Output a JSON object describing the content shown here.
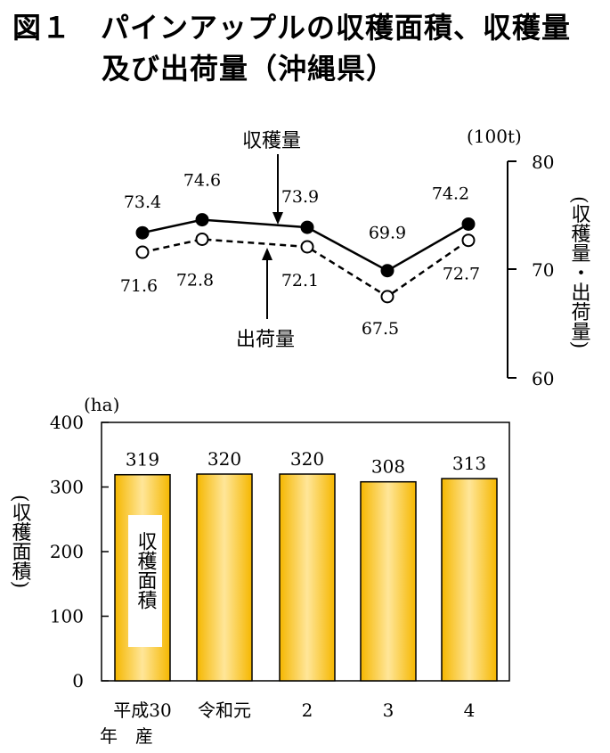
{
  "figure": {
    "title_line1": "図１　パインアップルの収穫面積、収穫量",
    "title_line2": "及び出荷量（沖縄県）"
  },
  "chart_data": [
    {
      "type": "line",
      "categories": [
        "平成30年産",
        "令和元",
        "2",
        "3",
        "4"
      ],
      "series": [
        {
          "name": "収穫量",
          "values": [
            73.4,
            74.6,
            73.9,
            69.9,
            74.2
          ],
          "marker": "filled-circle",
          "line": "solid",
          "color": "#000000"
        },
        {
          "name": "出荷量",
          "values": [
            71.6,
            72.8,
            72.1,
            67.5,
            72.7
          ],
          "marker": "open-circle",
          "line": "dashed",
          "color": "#000000"
        }
      ],
      "ylabel": "収穫量・出荷量",
      "yunit": "(100t)",
      "ylim": [
        60,
        80
      ],
      "yticks": [
        "60",
        "70",
        "80"
      ],
      "axis_side": "right",
      "labels": [
        "73.4",
        "74.6",
        "73.9",
        "69.9",
        "74.2",
        "71.6",
        "72.8",
        "72.1",
        "67.5",
        "72.7"
      ]
    },
    {
      "type": "bar",
      "categories": [
        "平成30年産",
        "令和元",
        "2",
        "3",
        "4"
      ],
      "xticks": [
        "平成30",
        "令和元",
        "2",
        "3",
        "4"
      ],
      "xtick_sub": "年　産",
      "values": [
        319,
        320,
        320,
        308,
        313
      ],
      "value_labels": [
        "319",
        "320",
        "320",
        "308",
        "313"
      ],
      "series_name": "収穫面積",
      "ylabel": "収穫面積",
      "yunit": "(ha)",
      "ylim": [
        0,
        400
      ],
      "yticks": [
        "0",
        "100",
        "200",
        "300",
        "400"
      ],
      "color_light": "#ffe699",
      "color_dark": "#f5b700"
    }
  ]
}
